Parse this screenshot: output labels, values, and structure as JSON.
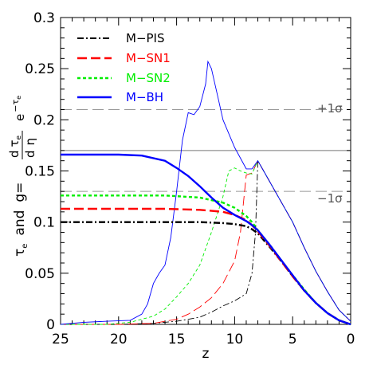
{
  "chart_data": {
    "type": "line",
    "xlabel": "z",
    "ylabel": {
      "tau": "τ",
      "tau_sub": "e",
      "and": "and",
      "g": "g=",
      "frac_num": "d",
      "frac_num_tau": "τ",
      "frac_num_sub": "e",
      "frac_den": "d",
      "frac_den_eta": "η",
      "exp_base": "e",
      "exp": "−τ",
      "exp_sub": "e"
    },
    "xlim": [
      25,
      0
    ],
    "ylim": [
      0,
      0.3
    ],
    "x_ticks": [
      25,
      20,
      15,
      10,
      5,
      0
    ],
    "y_ticks": [
      0,
      0.05,
      0.1,
      0.15,
      0.2,
      0.25,
      0.3
    ],
    "x_tick_labels": [
      "25",
      "20",
      "15",
      "10",
      "5",
      "0"
    ],
    "y_tick_labels": [
      "0",
      "0.05",
      "0.1",
      "0.15",
      "0.2",
      "0.25",
      "0.3"
    ],
    "legend_placement": "top-left",
    "reference_lines": [
      {
        "y": 0.21,
        "style": "dashed",
        "label": "+1σ"
      },
      {
        "y": 0.17,
        "style": "solid",
        "label": ""
      },
      {
        "y": 0.13,
        "style": "dashed",
        "label": "−1σ"
      }
    ],
    "series": [
      {
        "name": "M−PIS",
        "color": "#000000",
        "dash": "dashdot",
        "tau": [
          [
            25,
            0.1
          ],
          [
            20,
            0.1
          ],
          [
            16,
            0.1
          ],
          [
            13,
            0.1
          ],
          [
            11,
            0.099
          ],
          [
            10,
            0.098
          ],
          [
            9,
            0.096
          ],
          [
            8.5,
            0.093
          ],
          [
            8,
            0.089
          ],
          [
            7,
            0.076
          ],
          [
            6,
            0.062
          ],
          [
            5,
            0.047
          ],
          [
            4,
            0.033
          ],
          [
            3,
            0.021
          ],
          [
            2,
            0.011
          ],
          [
            1,
            0.004
          ],
          [
            0,
            0
          ]
        ],
        "g": [
          [
            25,
            0
          ],
          [
            20,
            0
          ],
          [
            17,
            0.001
          ],
          [
            15,
            0.003
          ],
          [
            13,
            0.007
          ],
          [
            12,
            0.012
          ],
          [
            11,
            0.018
          ],
          [
            10,
            0.023
          ],
          [
            9,
            0.03
          ],
          [
            8.5,
            0.05
          ],
          [
            8.2,
            0.09
          ],
          [
            8,
            0.16
          ],
          [
            7.5,
            0.15
          ],
          [
            6,
            0.12
          ],
          [
            5,
            0.1
          ],
          [
            4,
            0.075
          ],
          [
            3,
            0.052
          ],
          [
            2,
            0.032
          ],
          [
            1,
            0.014
          ],
          [
            0,
            0.003
          ]
        ]
      },
      {
        "name": "M−SN1",
        "color": "#ff0000",
        "dash": "longdash",
        "tau": [
          [
            25,
            0.113
          ],
          [
            20,
            0.113
          ],
          [
            16,
            0.113
          ],
          [
            13,
            0.112
          ],
          [
            11,
            0.11
          ],
          [
            10,
            0.107
          ],
          [
            9,
            0.102
          ],
          [
            8.5,
            0.097
          ],
          [
            8,
            0.091
          ],
          [
            7,
            0.077
          ],
          [
            6,
            0.062
          ],
          [
            5,
            0.047
          ],
          [
            4,
            0.033
          ],
          [
            3,
            0.021
          ],
          [
            2,
            0.011
          ],
          [
            1,
            0.004
          ],
          [
            0,
            0
          ]
        ],
        "g": [
          [
            25,
            0
          ],
          [
            20,
            0
          ],
          [
            17,
            0.001
          ],
          [
            15,
            0.005
          ],
          [
            14,
            0.01
          ],
          [
            13,
            0.017
          ],
          [
            12,
            0.026
          ],
          [
            11,
            0.04
          ],
          [
            10,
            0.062
          ],
          [
            9.5,
            0.09
          ],
          [
            9,
            0.146
          ],
          [
            8.5,
            0.148
          ],
          [
            8,
            0.16
          ],
          [
            7.5,
            0.15
          ],
          [
            6,
            0.12
          ],
          [
            5,
            0.1
          ],
          [
            4,
            0.075
          ],
          [
            3,
            0.052
          ],
          [
            2,
            0.032
          ],
          [
            1,
            0.014
          ],
          [
            0,
            0.003
          ]
        ]
      },
      {
        "name": "M−SN2",
        "color": "#00ee00",
        "dash": "shortdash",
        "tau": [
          [
            25,
            0.126
          ],
          [
            20,
            0.126
          ],
          [
            16,
            0.126
          ],
          [
            13,
            0.124
          ],
          [
            11,
            0.119
          ],
          [
            10,
            0.114
          ],
          [
            9,
            0.106
          ],
          [
            8.5,
            0.1
          ],
          [
            8,
            0.092
          ],
          [
            7,
            0.078
          ],
          [
            6,
            0.063
          ],
          [
            5,
            0.048
          ],
          [
            4,
            0.034
          ],
          [
            3,
            0.021
          ],
          [
            2,
            0.011
          ],
          [
            1,
            0.004
          ],
          [
            0,
            0
          ]
        ],
        "g": [
          [
            25,
            0
          ],
          [
            21,
            0
          ],
          [
            19,
            0.002
          ],
          [
            17,
            0.008
          ],
          [
            16,
            0.015
          ],
          [
            15,
            0.027
          ],
          [
            14,
            0.04
          ],
          [
            13,
            0.058
          ],
          [
            12,
            0.09
          ],
          [
            11,
            0.125
          ],
          [
            10.5,
            0.15
          ],
          [
            10,
            0.153
          ],
          [
            9.5,
            0.15
          ],
          [
            9,
            0.148
          ],
          [
            8.5,
            0.147
          ],
          [
            8,
            0.16
          ],
          [
            7.5,
            0.15
          ],
          [
            6,
            0.12
          ],
          [
            5,
            0.1
          ],
          [
            4,
            0.075
          ],
          [
            3,
            0.052
          ],
          [
            2,
            0.032
          ],
          [
            1,
            0.014
          ],
          [
            0,
            0.003
          ]
        ]
      },
      {
        "name": "M−BH",
        "color": "#0000ff",
        "dash": "solid",
        "tau": [
          [
            25,
            0.166
          ],
          [
            20,
            0.166
          ],
          [
            18,
            0.165
          ],
          [
            16,
            0.16
          ],
          [
            15,
            0.153
          ],
          [
            14,
            0.145
          ],
          [
            13,
            0.135
          ],
          [
            12,
            0.124
          ],
          [
            11,
            0.114
          ],
          [
            10,
            0.107
          ],
          [
            9,
            0.101
          ],
          [
            8.5,
            0.097
          ],
          [
            8,
            0.092
          ],
          [
            7,
            0.078
          ],
          [
            6,
            0.063
          ],
          [
            5,
            0.048
          ],
          [
            4,
            0.033
          ],
          [
            3,
            0.021
          ],
          [
            2,
            0.011
          ],
          [
            1,
            0.004
          ],
          [
            0,
            0
          ]
        ],
        "g": [
          [
            25,
            0
          ],
          [
            23,
            0.002
          ],
          [
            21,
            0.003
          ],
          [
            19,
            0.004
          ],
          [
            18,
            0.01
          ],
          [
            17.5,
            0.02
          ],
          [
            17,
            0.04
          ],
          [
            16.5,
            0.05
          ],
          [
            16,
            0.058
          ],
          [
            15.5,
            0.085
          ],
          [
            15,
            0.13
          ],
          [
            14.5,
            0.18
          ],
          [
            14,
            0.207
          ],
          [
            13.5,
            0.205
          ],
          [
            13,
            0.213
          ],
          [
            12.5,
            0.235
          ],
          [
            12.3,
            0.257
          ],
          [
            12,
            0.25
          ],
          [
            11.5,
            0.225
          ],
          [
            11,
            0.2
          ],
          [
            10,
            0.173
          ],
          [
            9,
            0.152
          ],
          [
            8.5,
            0.152
          ],
          [
            8,
            0.16
          ],
          [
            7.5,
            0.15
          ],
          [
            6,
            0.12
          ],
          [
            5,
            0.1
          ],
          [
            4,
            0.075
          ],
          [
            3,
            0.052
          ],
          [
            2,
            0.032
          ],
          [
            1,
            0.014
          ],
          [
            0,
            0.003
          ]
        ]
      }
    ]
  }
}
